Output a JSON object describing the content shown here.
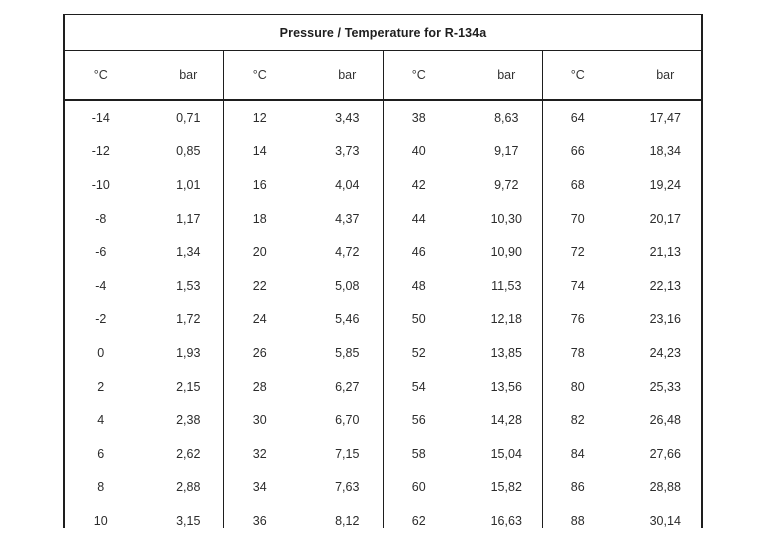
{
  "table": {
    "title": "Pressure / Temperature for R-134a",
    "headers": [
      {
        "temp": "°C",
        "pressure": "bar"
      },
      {
        "temp": "°C",
        "pressure": "bar"
      },
      {
        "temp": "°C",
        "pressure": "bar"
      },
      {
        "temp": "°C",
        "pressure": "bar"
      }
    ],
    "rows": [
      [
        [
          "-14",
          "0,71"
        ],
        [
          "12",
          "3,43"
        ],
        [
          "38",
          "8,63"
        ],
        [
          "64",
          "17,47"
        ]
      ],
      [
        [
          "-12",
          "0,85"
        ],
        [
          "14",
          "3,73"
        ],
        [
          "40",
          "9,17"
        ],
        [
          "66",
          "18,34"
        ]
      ],
      [
        [
          "-10",
          "1,01"
        ],
        [
          "16",
          "4,04"
        ],
        [
          "42",
          "9,72"
        ],
        [
          "68",
          "19,24"
        ]
      ],
      [
        [
          "-8",
          "1,17"
        ],
        [
          "18",
          "4,37"
        ],
        [
          "44",
          "10,30"
        ],
        [
          "70",
          "20,17"
        ]
      ],
      [
        [
          "-6",
          "1,34"
        ],
        [
          "20",
          "4,72"
        ],
        [
          "46",
          "10,90"
        ],
        [
          "72",
          "21,13"
        ]
      ],
      [
        [
          "-4",
          "1,53"
        ],
        [
          "22",
          "5,08"
        ],
        [
          "48",
          "11,53"
        ],
        [
          "74",
          "22,13"
        ]
      ],
      [
        [
          "-2",
          "1,72"
        ],
        [
          "24",
          "5,46"
        ],
        [
          "50",
          "12,18"
        ],
        [
          "76",
          "23,16"
        ]
      ],
      [
        [
          "0",
          "1,93"
        ],
        [
          "26",
          "5,85"
        ],
        [
          "52",
          "13,85"
        ],
        [
          "78",
          "24,23"
        ]
      ],
      [
        [
          "2",
          "2,15"
        ],
        [
          "28",
          "6,27"
        ],
        [
          "54",
          "13,56"
        ],
        [
          "80",
          "25,33"
        ]
      ],
      [
        [
          "4",
          "2,38"
        ],
        [
          "30",
          "6,70"
        ],
        [
          "56",
          "14,28"
        ],
        [
          "82",
          "26,48"
        ]
      ],
      [
        [
          "6",
          "2,62"
        ],
        [
          "32",
          "7,15"
        ],
        [
          "58",
          "15,04"
        ],
        [
          "84",
          "27,66"
        ]
      ],
      [
        [
          "8",
          "2,88"
        ],
        [
          "34",
          "7,63"
        ],
        [
          "60",
          "15,82"
        ],
        [
          "86",
          "28,88"
        ]
      ],
      [
        [
          "10",
          "3,15"
        ],
        [
          "36",
          "8,12"
        ],
        [
          "62",
          "16,63"
        ],
        [
          "88",
          "30,14"
        ]
      ]
    ]
  }
}
